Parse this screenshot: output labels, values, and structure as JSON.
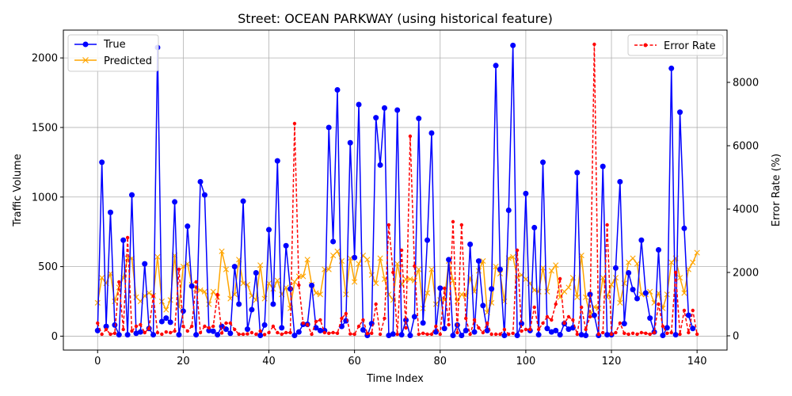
{
  "chart_data": {
    "type": "line",
    "title": "Street: OCEAN PARKWAY (using historical feature)",
    "xlabel": "Time Index",
    "ylabel": "Traffic Volume",
    "y2label": "Error Rate (%)",
    "xlim": [
      -8,
      147
    ],
    "ylim": [
      -100,
      2200
    ],
    "y2lim": [
      -450,
      9650
    ],
    "xticks": [
      0,
      20,
      40,
      60,
      80,
      100,
      120,
      140
    ],
    "yticks": [
      0,
      500,
      1000,
      1500,
      2000
    ],
    "y2ticks": [
      0,
      2000,
      4000,
      6000,
      8000
    ],
    "grid": true,
    "legend_left": "upper left",
    "legend_right": "upper right",
    "series": [
      {
        "name": "True",
        "color": "#0000ff",
        "marker": "circle",
        "axis": "left",
        "values": [
          40,
          1250,
          70,
          890,
          80,
          10,
          690,
          10,
          1015,
          20,
          30,
          520,
          55,
          10,
          2075,
          105,
          130,
          100,
          965,
          10,
          180,
          790,
          360,
          10,
          1110,
          1015,
          40,
          35,
          10,
          70,
          50,
          20,
          500,
          230,
          970,
          50,
          190,
          455,
          5,
          80,
          765,
          230,
          1260,
          60,
          650,
          340,
          5,
          30,
          85,
          85,
          365,
          60,
          40,
          40,
          1500,
          680,
          1770,
          70,
          110,
          1390,
          565,
          1665,
          45,
          5,
          90,
          1570,
          1230,
          1640,
          5,
          15,
          1625,
          10,
          115,
          5,
          140,
          1565,
          95,
          690,
          1460,
          30,
          345,
          55,
          550,
          5,
          80,
          5,
          40,
          660,
          30,
          540,
          220,
          40,
          340,
          1945,
          480,
          5,
          905,
          2090,
          5,
          90,
          1025,
          40,
          780,
          10,
          1250,
          55,
          30,
          40,
          10,
          90,
          50,
          60,
          1175,
          10,
          5,
          300,
          150,
          5,
          1220,
          10,
          10,
          490,
          1110,
          90,
          455,
          335,
          270,
          690,
          310,
          130,
          30,
          620,
          5,
          60,
          1925,
          10,
          1610,
          775,
          150,
          55
        ]
      },
      {
        "name": "Predicted",
        "color": "#ffa500",
        "marker": "x",
        "axis": "left",
        "values": [
          240,
          420,
          380,
          450,
          250,
          350,
          420,
          560,
          560,
          280,
          250,
          290,
          310,
          290,
          570,
          250,
          190,
          260,
          580,
          210,
          500,
          520,
          370,
          340,
          330,
          320,
          230,
          320,
          280,
          610,
          480,
          270,
          300,
          550,
          380,
          370,
          290,
          260,
          510,
          270,
          380,
          340,
          400,
          300,
          350,
          200,
          390,
          430,
          430,
          550,
          370,
          310,
          300,
          480,
          480,
          580,
          610,
          540,
          300,
          560,
          390,
          520,
          580,
          550,
          440,
          380,
          560,
          410,
          300,
          260,
          520,
          370,
          410,
          410,
          400,
          480,
          200,
          310,
          480,
          230,
          260,
          260,
          540,
          400,
          250,
          300,
          290,
          420,
          320,
          470,
          540,
          170,
          240,
          500,
          450,
          250,
          560,
          570,
          420,
          440,
          410,
          380,
          330,
          320,
          490,
          320,
          470,
          510,
          280,
          320,
          350,
          420,
          280,
          580,
          280,
          150,
          210,
          200,
          420,
          280,
          370,
          420,
          240,
          380,
          530,
          560,
          520,
          300,
          300,
          320,
          240,
          310,
          200,
          300,
          530,
          560,
          420,
          310,
          480,
          530,
          600
        ]
      },
      {
        "name": "Error Rate",
        "color": "#ff0000",
        "marker": "dot",
        "axis": "right",
        "values": [
          400,
          50,
          200,
          50,
          80,
          1700,
          200,
          3100,
          150,
          300,
          350,
          100,
          230,
          1250,
          100,
          50,
          120,
          100,
          150,
          2100,
          300,
          150,
          300,
          1700,
          100,
          300,
          250,
          300,
          1300,
          90,
          400,
          400,
          200,
          50,
          50,
          60,
          100,
          50,
          150,
          40,
          100,
          300,
          100,
          50,
          100,
          100,
          6700,
          1600,
          400,
          350,
          50,
          450,
          500,
          100,
          80,
          100,
          80,
          550,
          700,
          60,
          50,
          300,
          500,
          70,
          80,
          1000,
          50,
          550,
          3500,
          2000,
          50,
          2700,
          250,
          6300,
          2200,
          50,
          80,
          50,
          50,
          300,
          50,
          1500,
          350,
          3600,
          100,
          3500,
          550,
          50,
          500,
          250,
          100,
          400,
          50,
          50,
          50,
          200,
          50,
          80,
          2700,
          150,
          200,
          200,
          900,
          200,
          400,
          600,
          500,
          1000,
          1800,
          400,
          600,
          500,
          50,
          900,
          200,
          600,
          9200,
          50,
          100,
          3500,
          50,
          100,
          400,
          80,
          50,
          80,
          50,
          100,
          80,
          50,
          100,
          1000,
          300,
          80,
          100,
          2000,
          50,
          800,
          100,
          800,
          50
        ]
      }
    ]
  }
}
